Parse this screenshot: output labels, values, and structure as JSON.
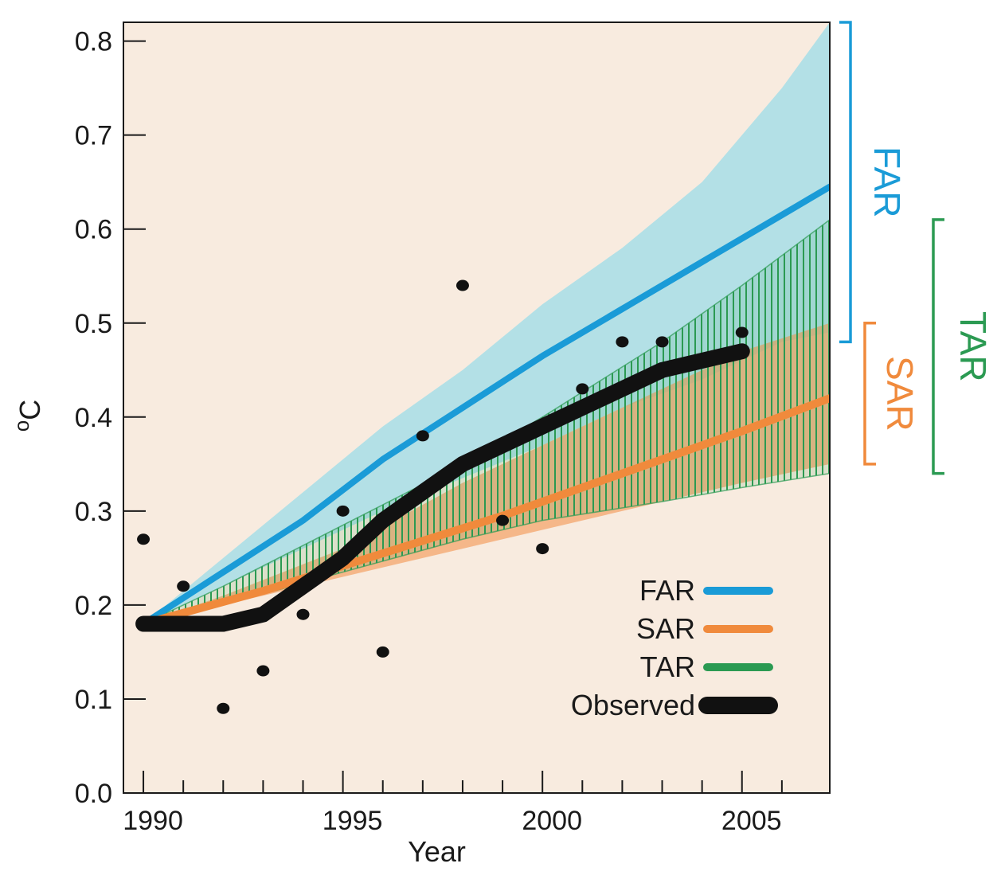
{
  "chart_data": {
    "type": "line",
    "xlabel": "Year",
    "ylabel": "oC",
    "ylabel_parts": {
      "superscript": "o",
      "base": "C"
    },
    "xlim": [
      1989.5,
      2007.2
    ],
    "ylim": [
      0.0,
      0.82
    ],
    "x_tick_labels": [
      {
        "value": 1990,
        "label": "1990"
      },
      {
        "value": 1995,
        "label": "1995"
      },
      {
        "value": 2000,
        "label": "2000"
      },
      {
        "value": 2005,
        "label": "2005"
      }
    ],
    "x_minor_ticks": [
      1991,
      1992,
      1993,
      1994,
      1996,
      1997,
      1998,
      1999,
      2001,
      2002,
      2003,
      2004,
      2006
    ],
    "y_tick_labels": [
      {
        "value": 0.0,
        "label": "0.0"
      },
      {
        "value": 0.1,
        "label": "0.1"
      },
      {
        "value": 0.2,
        "label": "0.2"
      },
      {
        "value": 0.3,
        "label": "0.3"
      },
      {
        "value": 0.4,
        "label": "0.4"
      },
      {
        "value": 0.5,
        "label": "0.5"
      },
      {
        "value": 0.6,
        "label": "0.6"
      },
      {
        "value": 0.7,
        "label": "0.7"
      },
      {
        "value": 0.8,
        "label": "0.8"
      }
    ],
    "bands": [
      {
        "name": "FAR",
        "color": "#b3e0e6",
        "x": [
          1990,
          1992,
          1994,
          1996,
          1998,
          2000,
          2002,
          2004,
          2006,
          2007.2
        ],
        "lower": [
          0.18,
          0.22,
          0.26,
          0.3,
          0.335,
          0.37,
          0.41,
          0.44,
          0.48,
          0.49
        ],
        "upper": [
          0.18,
          0.25,
          0.32,
          0.39,
          0.45,
          0.52,
          0.58,
          0.65,
          0.75,
          0.82
        ]
      },
      {
        "name": "SAR",
        "color": "#f4a66c",
        "x": [
          1990,
          1992,
          1995,
          1998,
          2000,
          2003,
          2005,
          2007.2
        ],
        "lower": [
          0.18,
          0.2,
          0.23,
          0.26,
          0.28,
          0.31,
          0.33,
          0.35
        ],
        "upper": [
          0.18,
          0.21,
          0.26,
          0.33,
          0.37,
          0.43,
          0.47,
          0.5
        ]
      },
      {
        "name": "TAR",
        "color": "#2b9a52",
        "x": [
          1990,
          1992,
          1995,
          1998,
          2000,
          2003,
          2005,
          2007.2
        ],
        "lower": [
          0.18,
          0.2,
          0.235,
          0.27,
          0.29,
          0.31,
          0.325,
          0.34
        ],
        "upper": [
          0.18,
          0.22,
          0.285,
          0.35,
          0.4,
          0.48,
          0.54,
          0.61
        ]
      }
    ],
    "series": [
      {
        "name": "FAR",
        "color": "#1a9bd7",
        "x": [
          1990,
          1992,
          1994,
          1996,
          1998,
          2000,
          2002,
          2004,
          2006,
          2007.2
        ],
        "values": [
          0.18,
          0.235,
          0.29,
          0.355,
          0.41,
          0.465,
          0.515,
          0.565,
          0.615,
          0.645
        ]
      },
      {
        "name": "SAR",
        "color": "#f08a3c",
        "x": [
          1990,
          1993,
          1996,
          1999,
          2002,
          2005,
          2007.2
        ],
        "values": [
          0.18,
          0.215,
          0.255,
          0.295,
          0.34,
          0.385,
          0.42
        ]
      },
      {
        "name": "Observed",
        "color": "#111111",
        "x": [
          1990,
          1991,
          1992,
          1993,
          1994,
          1995,
          1996,
          1997,
          1998,
          1999,
          2000,
          2001,
          2002,
          2003,
          2004,
          2005
        ],
        "values": [
          0.18,
          0.18,
          0.18,
          0.19,
          0.22,
          0.25,
          0.29,
          0.32,
          0.35,
          0.37,
          0.39,
          0.41,
          0.43,
          0.45,
          0.46,
          0.47
        ]
      }
    ],
    "observed_points": {
      "x": [
        1990,
        1991,
        1992,
        1993,
        1994,
        1995,
        1996,
        1997,
        1998,
        1999,
        2000,
        2001,
        2002,
        2003,
        2005
      ],
      "values": [
        0.27,
        0.22,
        0.09,
        0.13,
        0.19,
        0.3,
        0.15,
        0.38,
        0.54,
        0.29,
        0.26,
        0.43,
        0.48,
        0.48,
        0.49
      ]
    },
    "legend": {
      "placement": "bottom-right",
      "entries": [
        {
          "label": "FAR",
          "color": "#1a9bd7"
        },
        {
          "label": "SAR",
          "color": "#f08a3c"
        },
        {
          "label": "TAR",
          "color": "#2b9a52"
        },
        {
          "label": "Observed",
          "color": "#111111"
        }
      ]
    },
    "range_brackets": [
      {
        "label": "FAR",
        "color": "#1a9bd7",
        "range": [
          0.48,
          0.82
        ]
      },
      {
        "label": "SAR",
        "color": "#f08a3c",
        "range": [
          0.35,
          0.5
        ]
      },
      {
        "label": "TAR",
        "color": "#2b9a52",
        "range": [
          0.34,
          0.61
        ]
      }
    ],
    "background_color": "#f8ebdf"
  }
}
